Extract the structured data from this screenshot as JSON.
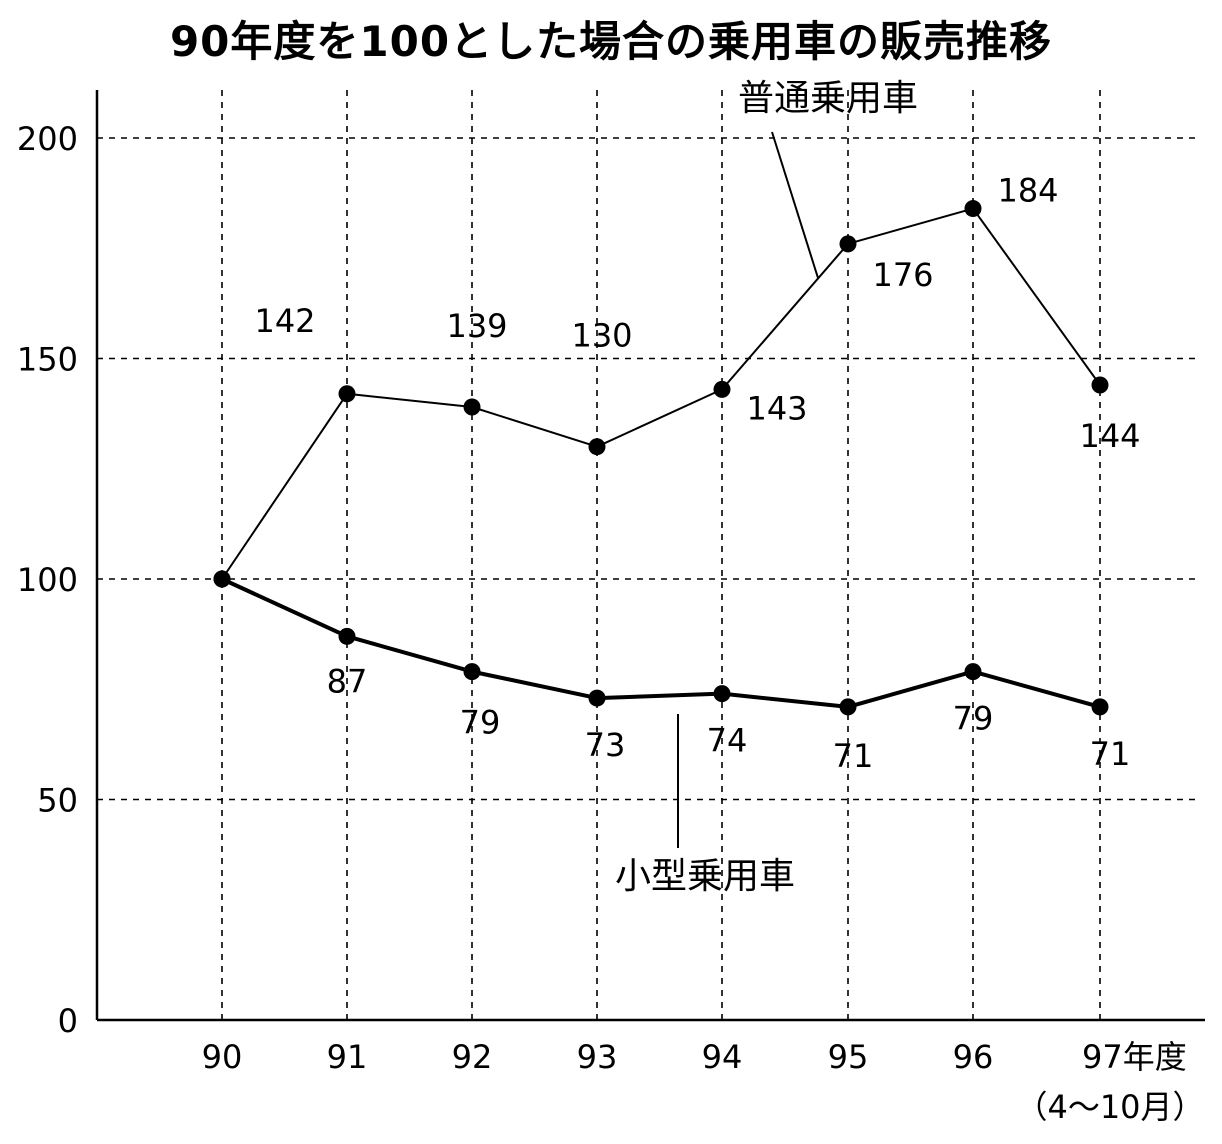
{
  "chart_data": {
    "type": "line",
    "title": "90年度を100とした場合の乗用車の販売推移",
    "categories": [
      "90",
      "91",
      "92",
      "93",
      "94",
      "95",
      "96",
      "97年度"
    ],
    "x_sublabel": "（4〜10月）",
    "ylim": [
      0,
      200
    ],
    "yticks": [
      "0",
      "50",
      "100",
      "150",
      "200"
    ],
    "grid": true,
    "series": [
      {
        "name": "普通乗用車",
        "values": [
          100,
          142,
          139,
          130,
          143,
          176,
          184,
          144
        ],
        "labels": [
          "",
          "142",
          "139",
          "130",
          "143",
          "176",
          "184",
          "144"
        ]
      },
      {
        "name": "小型乗用車",
        "values": [
          100,
          87,
          79,
          73,
          74,
          71,
          79,
          71
        ],
        "labels": [
          "",
          "87",
          "79",
          "73",
          "74",
          "71",
          "79",
          "71"
        ]
      }
    ]
  }
}
